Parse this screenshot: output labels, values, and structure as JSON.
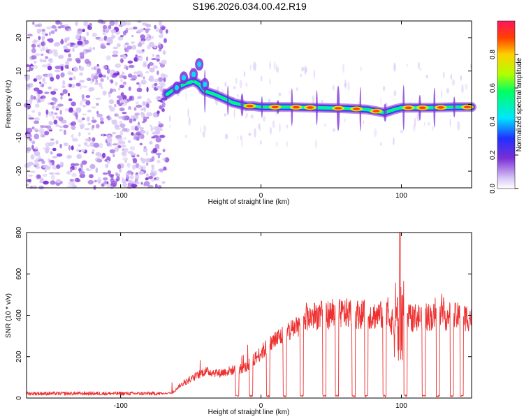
{
  "title": "S196.2026.034.00.42.R19",
  "chart_data": [
    {
      "type": "heatmap",
      "panel": "top",
      "xlabel": "Height of straight line (km)",
      "ylabel": "Frequency (Hz)",
      "xlim": [
        -167,
        150
      ],
      "ylim": [
        -25,
        25
      ],
      "x_ticks": [
        -100,
        0,
        100
      ],
      "x_tick_labels": [
        "-100",
        "0",
        "100"
      ],
      "y_ticks": [
        -20,
        -10,
        0,
        10,
        20
      ],
      "y_tick_labels": [
        "-20",
        "-10",
        "0",
        "10",
        "20"
      ],
      "noise_region_x": [
        -167,
        -67
      ],
      "ridge_path": [
        [
          -67,
          3
        ],
        [
          -62,
          4.5
        ],
        [
          -55,
          6
        ],
        [
          -48,
          7
        ],
        [
          -44,
          6
        ],
        [
          -40,
          4
        ],
        [
          -33,
          3
        ],
        [
          -25,
          1.5
        ],
        [
          -20,
          0.5
        ],
        [
          -15,
          0
        ],
        [
          -10,
          -0.5
        ],
        [
          -5,
          -0.5
        ],
        [
          0,
          -0.8
        ],
        [
          20,
          -0.8
        ],
        [
          40,
          -1
        ],
        [
          60,
          -1.2
        ],
        [
          75,
          -1.5
        ],
        [
          82,
          -2
        ],
        [
          88,
          -2.5
        ],
        [
          95,
          -1.5
        ],
        [
          100,
          -1
        ],
        [
          120,
          -1
        ],
        [
          140,
          -0.8
        ],
        [
          150,
          -0.8
        ]
      ],
      "ridge_peaks_x": [
        -8,
        10,
        25,
        35,
        55,
        68,
        82,
        105,
        115,
        128,
        147
      ],
      "colorbar": {
        "label": "Normalized spectral amplitude",
        "range": [
          0,
          1
        ],
        "ticks": [
          0.0,
          0.2,
          0.4,
          0.6,
          0.8
        ],
        "tick_labels": [
          "0.0",
          "0.2",
          "0.4",
          "0.6",
          "0.8"
        ],
        "colors": [
          "#ffffff",
          "#d9c8f5",
          "#7b2fd6",
          "#2030ff",
          "#00e5ff",
          "#00ff60",
          "#b0ff00",
          "#ffd000",
          "#ff4000",
          "#ff1560"
        ]
      }
    },
    {
      "type": "line",
      "panel": "bottom",
      "xlabel": "Height of straight line (km)",
      "ylabel": "SNR (10 * v/v)",
      "xlim": [
        -167,
        150
      ],
      "ylim": [
        0,
        800
      ],
      "x_ticks": [
        -100,
        0,
        100
      ],
      "x_tick_labels": [
        "-100",
        "0",
        "100"
      ],
      "y_ticks": [
        0,
        200,
        400,
        600,
        800
      ],
      "y_tick_labels": [
        "0",
        "200",
        "400",
        "600",
        "800"
      ],
      "line_color": "#ee3030",
      "profile": [
        [
          -167,
          22
        ],
        [
          -70,
          22
        ],
        [
          -63,
          25
        ],
        [
          -58,
          60
        ],
        [
          -50,
          90
        ],
        [
          -45,
          110
        ],
        [
          -40,
          130
        ],
        [
          -30,
          120
        ],
        [
          -20,
          135
        ],
        [
          -10,
          150
        ],
        [
          0,
          220
        ],
        [
          10,
          280
        ],
        [
          20,
          320
        ],
        [
          30,
          380
        ],
        [
          40,
          400
        ],
        [
          60,
          410
        ],
        [
          80,
          400
        ],
        [
          90,
          400
        ],
        [
          95,
          350
        ],
        [
          100,
          380
        ],
        [
          110,
          390
        ],
        [
          130,
          395
        ],
        [
          150,
          390
        ]
      ],
      "peak": {
        "x": 99,
        "y": 800
      },
      "dropouts_x": [
        -17,
        -7,
        5,
        17,
        29,
        45,
        54,
        66,
        75,
        88,
        103,
        116,
        126,
        136,
        143
      ]
    }
  ]
}
